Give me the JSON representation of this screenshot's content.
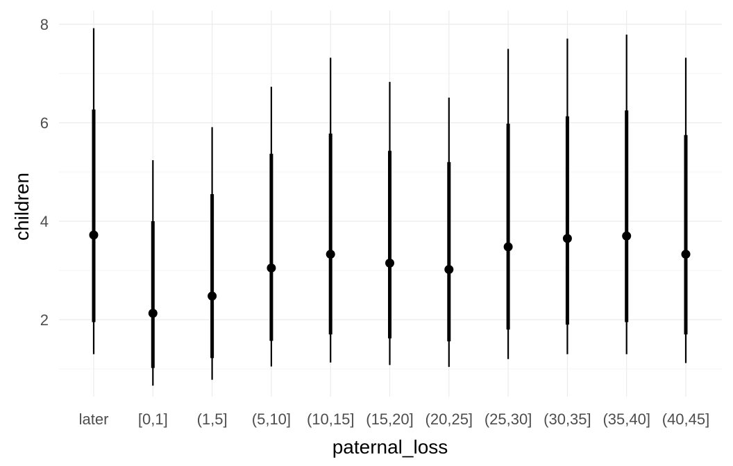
{
  "chart_data": {
    "type": "pointrange",
    "xlabel": "paternal_loss",
    "ylabel": "children",
    "ylim": [
      0.55,
      8.1
    ],
    "yticks": [
      2,
      4,
      6,
      8
    ],
    "grid": true,
    "categories": [
      "later",
      "[0,1]",
      "(1,5]",
      "(5,10]",
      "(10,15]",
      "(15,20]",
      "(20,25]",
      "(25,30]",
      "(30,35]",
      "(35,40]",
      "(40,45]"
    ],
    "estimate": [
      3.72,
      2.13,
      2.48,
      3.05,
      3.33,
      3.15,
      3.02,
      3.48,
      3.65,
      3.7,
      3.33
    ],
    "inner_lower": [
      1.95,
      1.02,
      1.22,
      1.57,
      1.7,
      1.62,
      1.56,
      1.8,
      1.9,
      1.95,
      1.7
    ],
    "inner_upper": [
      6.27,
      4.0,
      4.55,
      5.37,
      5.78,
      5.43,
      5.2,
      5.98,
      6.13,
      6.25,
      5.75
    ],
    "outer_lower": [
      1.3,
      0.66,
      0.78,
      1.05,
      1.13,
      1.08,
      1.04,
      1.2,
      1.3,
      1.3,
      1.12
    ],
    "outer_upper": [
      7.92,
      5.24,
      5.91,
      6.73,
      7.32,
      6.83,
      6.51,
      7.5,
      7.71,
      7.79,
      7.32
    ],
    "colors": {
      "point": "#000000",
      "grid": "#ebebeb",
      "tick_text": "#4d4d4d"
    }
  }
}
